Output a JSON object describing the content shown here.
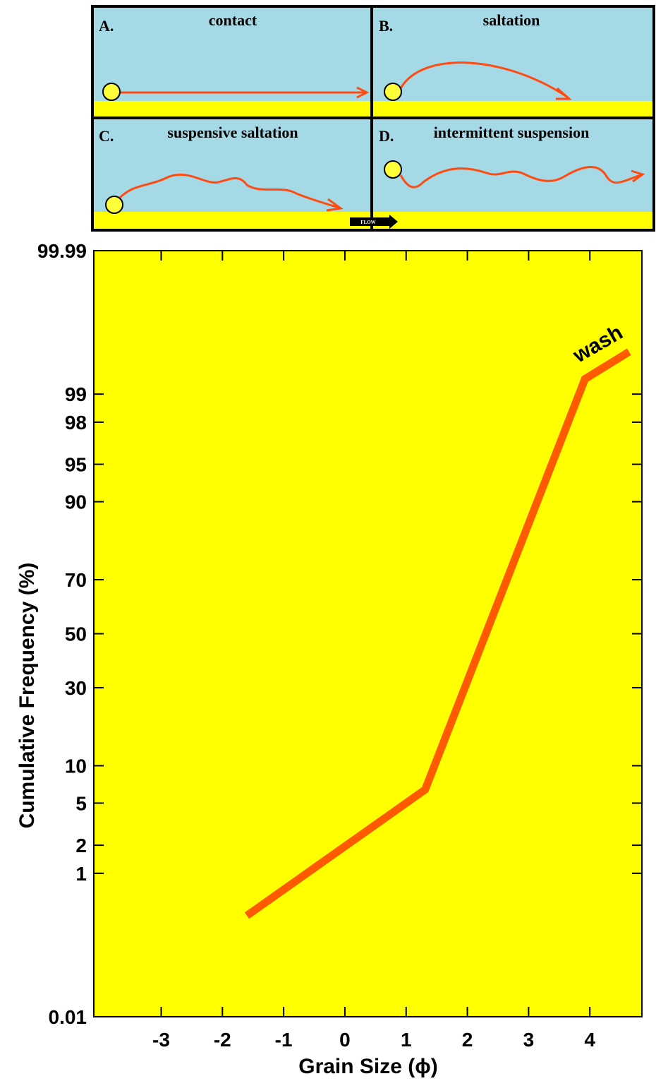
{
  "diagram": {
    "panels": [
      {
        "label": "A.",
        "title": "contact"
      },
      {
        "label": "B.",
        "title": "saltation"
      },
      {
        "label": "C.",
        "title": "suspensive saltation"
      },
      {
        "label": "D.",
        "title": "intermittent suspension"
      }
    ],
    "flow_label": "FLOW"
  },
  "chart_data": {
    "type": "line",
    "yscale": "probability",
    "xlabel": "Grain Size (ϕ)",
    "ylabel": "Cumulative Frequency (%)",
    "xlim": [
      -4.1,
      4.85
    ],
    "xticks": [
      -3,
      -2,
      -1,
      0,
      1,
      2,
      3,
      4
    ],
    "ylim": [
      0.01,
      99.99
    ],
    "yticks": [
      0.01,
      1,
      2,
      5,
      10,
      30,
      50,
      70,
      90,
      95,
      98,
      99,
      99.99
    ],
    "series": [
      {
        "name": "wash",
        "color": "#ff5a00",
        "x": [
          -1.6,
          1.31,
          3.92,
          4.64
        ],
        "values": [
          0.31,
          6.5,
          99.33,
          99.69
        ]
      }
    ],
    "annotations": [
      {
        "text": "wash"
      }
    ]
  }
}
